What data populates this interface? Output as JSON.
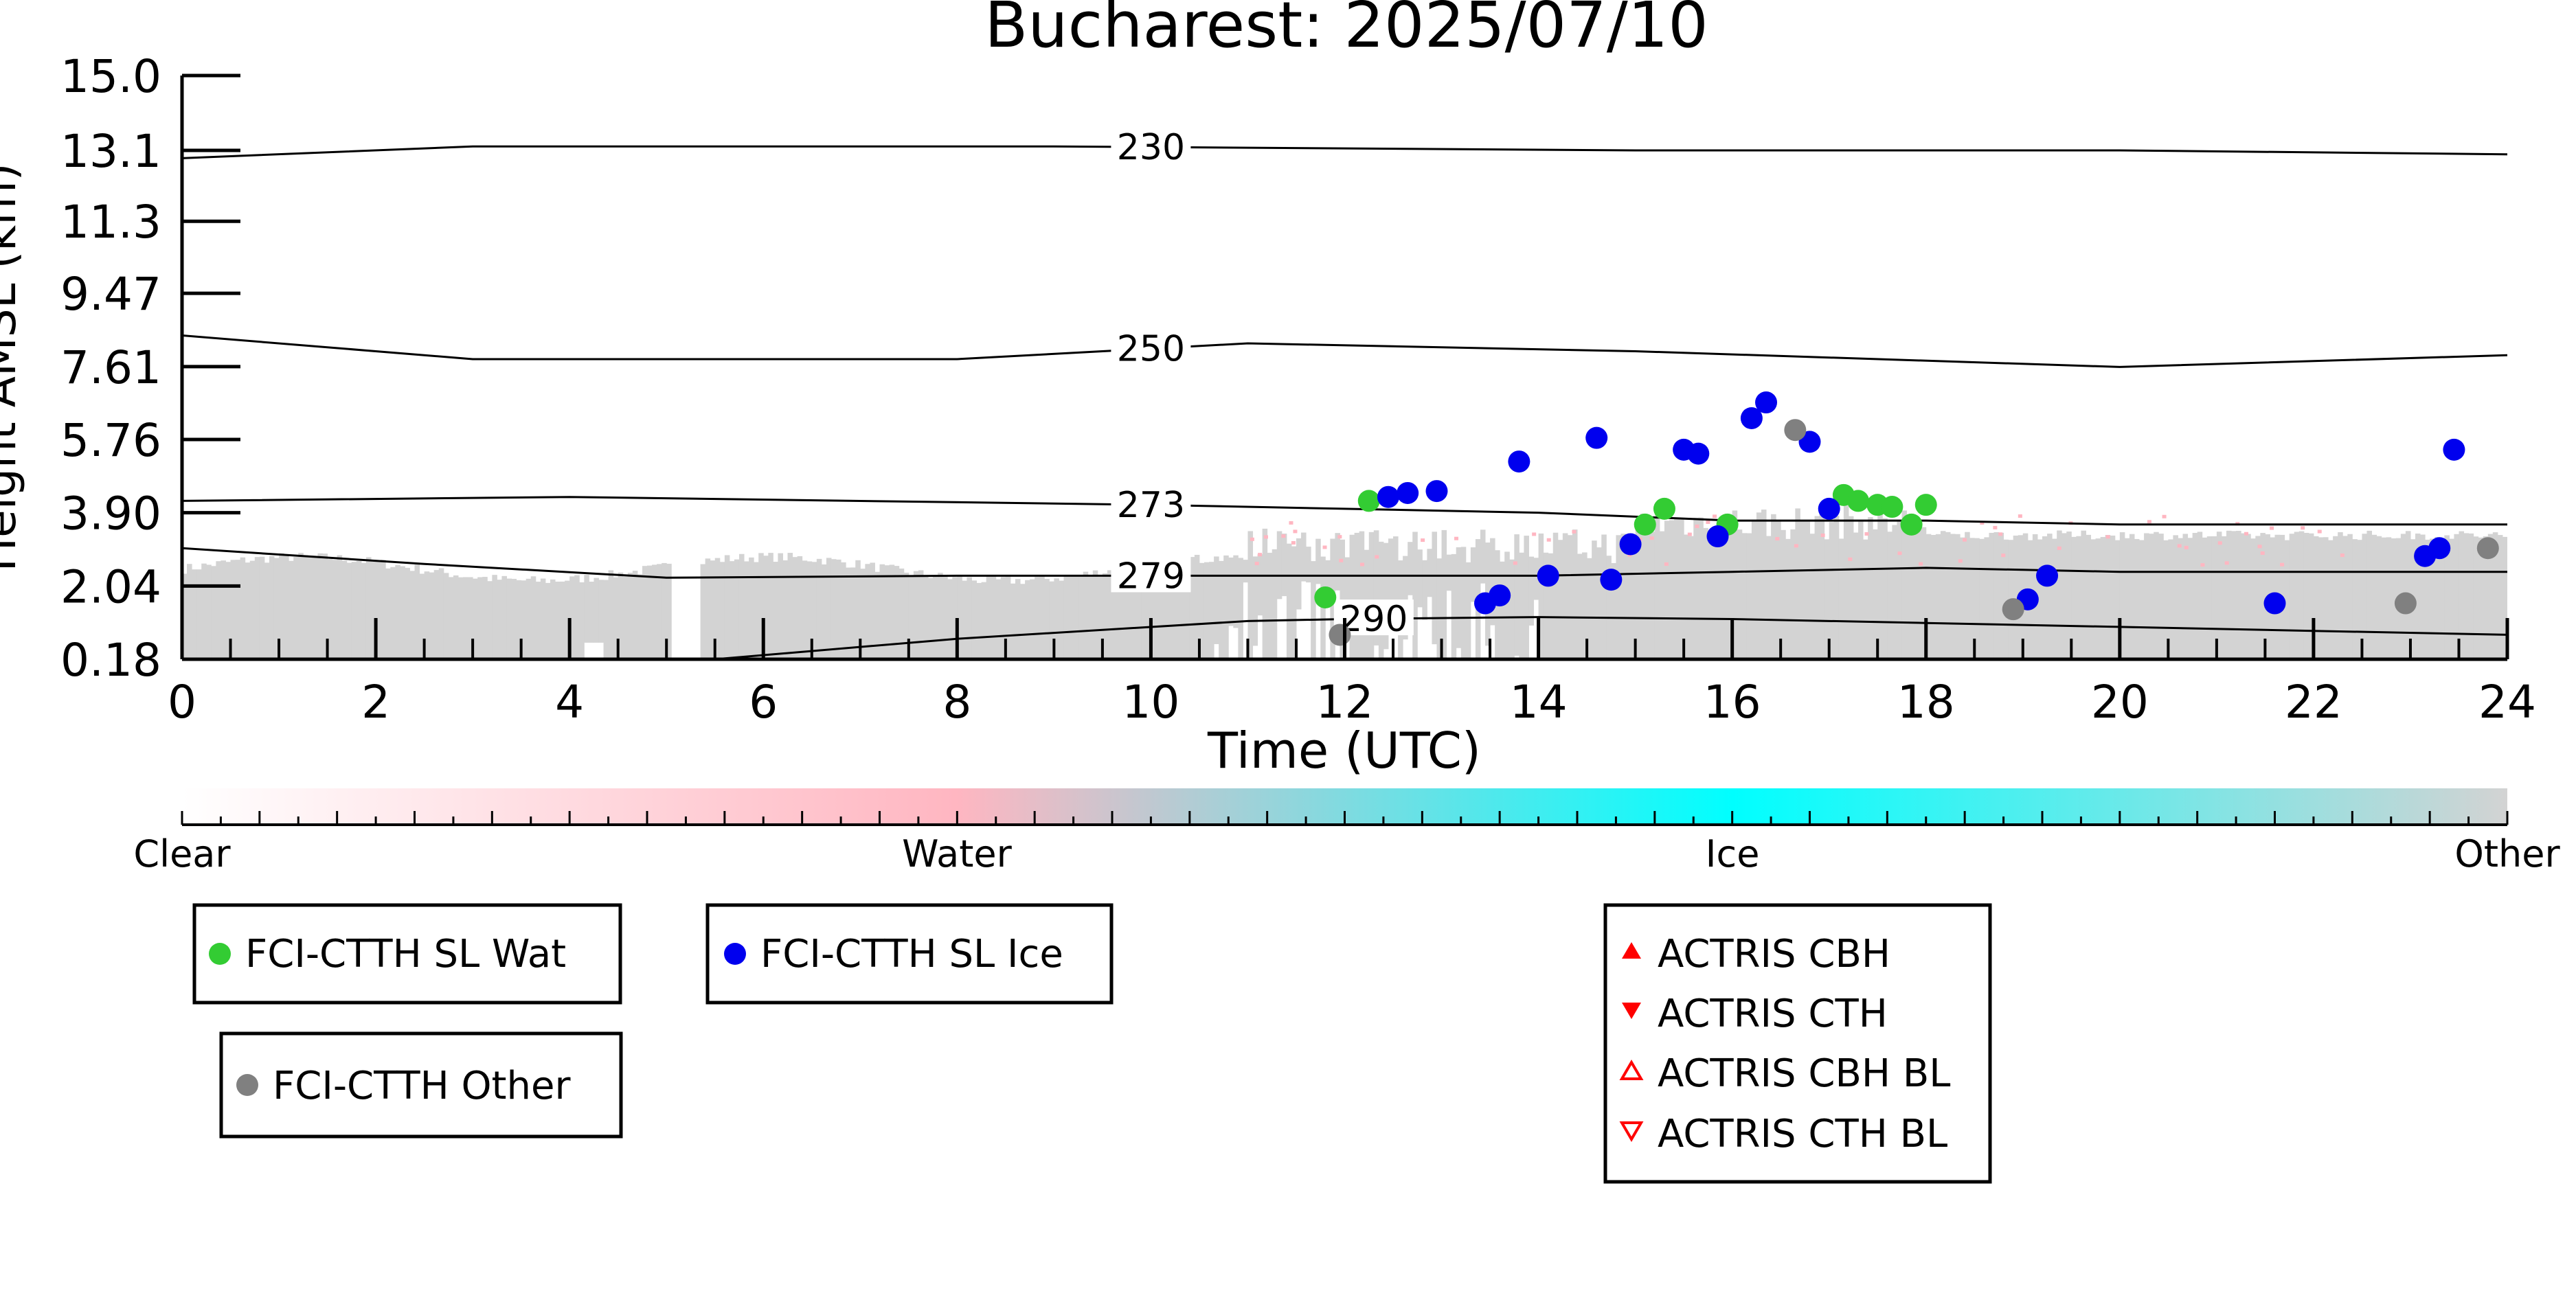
{
  "chart_data": {
    "type": "scatter",
    "title": "Bucharest: 2025/07/10",
    "xlabel": "Time (UTC)",
    "ylabel": "Height AMSL (km)",
    "xlim": [
      0,
      24
    ],
    "ylim": [
      0.18,
      15.0
    ],
    "x_ticks": [
      0,
      2,
      4,
      6,
      8,
      10,
      12,
      14,
      16,
      18,
      20,
      22,
      24
    ],
    "y_ticks": [
      "0.18",
      "2.04",
      "3.90",
      "5.76",
      "7.61",
      "9.47",
      "11.3",
      "13.1",
      "15.0"
    ],
    "y_tick_values": [
      0.18,
      2.04,
      3.9,
      5.76,
      7.61,
      9.47,
      11.3,
      13.1,
      15.0
    ],
    "background": "grey cloud-classification curtain (Other) from 0 to ~2.5 km with pink Water speckles near 3-3.9 km",
    "colorbar": {
      "labels": [
        "Clear",
        "Water",
        "Ice",
        "Other"
      ],
      "colors": [
        "#ffffff",
        "#ffb6c1",
        "#00ffff",
        "#d3d3d3"
      ]
    },
    "contour_levels": [
      {
        "label": "230",
        "points": [
          [
            0,
            12.9
          ],
          [
            3,
            13.2
          ],
          [
            9,
            13.2
          ],
          [
            15,
            13.1
          ],
          [
            20,
            13.1
          ],
          [
            24,
            13.0
          ]
        ]
      },
      {
        "label": "250",
        "points": [
          [
            0,
            8.4
          ],
          [
            3,
            7.8
          ],
          [
            8,
            7.8
          ],
          [
            11,
            8.2
          ],
          [
            15,
            8.0
          ],
          [
            20,
            7.6
          ],
          [
            24,
            7.9
          ]
        ]
      },
      {
        "label": "273",
        "points": [
          [
            0,
            4.2
          ],
          [
            4,
            4.3
          ],
          [
            10,
            4.1
          ],
          [
            14,
            3.9
          ],
          [
            16,
            3.7
          ],
          [
            18,
            3.7
          ],
          [
            20,
            3.6
          ],
          [
            24,
            3.6
          ]
        ]
      },
      {
        "label": "279",
        "points": [
          [
            0,
            3.0
          ],
          [
            2.5,
            2.6
          ],
          [
            5,
            2.25
          ],
          [
            8,
            2.3
          ],
          [
            10,
            2.3
          ],
          [
            14,
            2.3
          ],
          [
            16,
            2.4
          ],
          [
            18,
            2.5
          ],
          [
            20,
            2.4
          ],
          [
            24,
            2.4
          ]
        ]
      },
      {
        "label": "290",
        "points": [
          [
            5.5,
            0.18
          ],
          [
            8,
            0.7
          ],
          [
            11,
            1.15
          ],
          [
            12,
            1.2
          ],
          [
            14,
            1.25
          ],
          [
            16,
            1.2
          ],
          [
            18,
            1.1
          ],
          [
            22,
            0.9
          ],
          [
            24,
            0.8
          ]
        ]
      }
    ],
    "series": [
      {
        "name": "FCI-CTTH SL Wat",
        "color": "#33cc33",
        "points": [
          [
            11.8,
            1.75
          ],
          [
            12.25,
            4.2
          ],
          [
            15.1,
            3.6
          ],
          [
            15.3,
            4.0
          ],
          [
            15.95,
            3.6
          ],
          [
            17.15,
            4.35
          ],
          [
            17.3,
            4.2
          ],
          [
            17.5,
            4.1
          ],
          [
            17.65,
            4.05
          ],
          [
            17.85,
            3.6
          ],
          [
            18.0,
            4.1
          ]
        ]
      },
      {
        "name": "FCI-CTTH SL Ice",
        "color": "#0000ee",
        "points": [
          [
            12.45,
            4.3
          ],
          [
            12.65,
            4.4
          ],
          [
            12.95,
            4.45
          ],
          [
            13.45,
            1.6
          ],
          [
            13.6,
            1.8
          ],
          [
            13.8,
            5.2
          ],
          [
            14.1,
            2.3
          ],
          [
            14.6,
            5.8
          ],
          [
            14.75,
            2.2
          ],
          [
            14.95,
            3.1
          ],
          [
            15.5,
            5.5
          ],
          [
            15.65,
            5.4
          ],
          [
            15.85,
            3.3
          ],
          [
            16.2,
            6.3
          ],
          [
            16.35,
            6.7
          ],
          [
            16.8,
            5.7
          ],
          [
            17.0,
            4.0
          ],
          [
            19.05,
            1.7
          ],
          [
            19.25,
            2.3
          ],
          [
            21.6,
            1.6
          ],
          [
            23.15,
            2.8
          ],
          [
            23.3,
            3.0
          ],
          [
            23.45,
            5.5
          ]
        ]
      },
      {
        "name": "FCI-CTTH Other",
        "color": "#808080",
        "points": [
          [
            11.95,
            0.8
          ],
          [
            16.65,
            6.0
          ],
          [
            18.9,
            1.45
          ],
          [
            22.95,
            1.6
          ],
          [
            23.8,
            3.0
          ]
        ]
      },
      {
        "name": "ACTRIS CBH",
        "color": "#ff0000",
        "points": []
      },
      {
        "name": "ACTRIS CTH",
        "color": "#ff0000",
        "points": []
      },
      {
        "name": "ACTRIS CBH BL",
        "color": "#ff0000",
        "points": []
      },
      {
        "name": "ACTRIS CTH BL",
        "color": "#ff0000",
        "points": []
      }
    ]
  }
}
